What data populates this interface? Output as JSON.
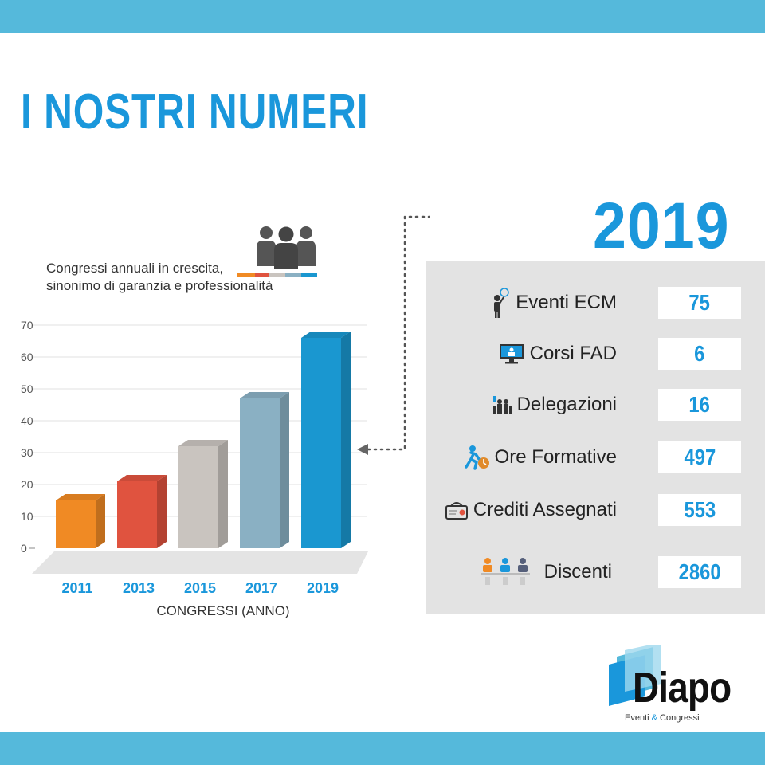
{
  "page": {
    "title": "I NOSTRI NUMERI",
    "colors": {
      "band": "#55b9db",
      "accent": "#1a97db",
      "panel": "#e3e3e3"
    }
  },
  "chart_caption": {
    "line1": "Congressi annuali in crescita,",
    "line2": "sinonimo di garanzia e professionalità",
    "icon": "people-group-icon"
  },
  "chart_data": {
    "type": "bar",
    "categories": [
      "2011",
      "2013",
      "2015",
      "2017",
      "2019"
    ],
    "values": [
      15,
      21,
      32,
      47,
      66
    ],
    "colors": [
      "#f08a24",
      "#e0533f",
      "#c9c4bf",
      "#8ab0c3",
      "#1a97d0"
    ],
    "xlabel": "CONGRESSI (ANNO)",
    "ylabel": "",
    "ylim": [
      0,
      70
    ],
    "yticks": [
      "0",
      "10",
      "20",
      "30",
      "40",
      "50",
      "60",
      "70"
    ],
    "grid": true
  },
  "stats": {
    "year": "2019",
    "items": [
      {
        "label": "Eventi ECM",
        "value": "75",
        "icon": "speaker-icon"
      },
      {
        "label": "Corsi FAD",
        "value": "6",
        "icon": "monitor-icon"
      },
      {
        "label": "Delegazioni",
        "value": "16",
        "icon": "delegation-icon"
      },
      {
        "label": "Ore Formative",
        "value": "497",
        "icon": "running-clock-icon"
      },
      {
        "label": "Crediti Assegnati",
        "value": "553",
        "icon": "certificate-icon"
      },
      {
        "label": "Discenti",
        "value": "2860",
        "icon": "learners-icon"
      }
    ]
  },
  "logo": {
    "word": "Diapo",
    "sub_before": "Eventi ",
    "sub_amp": "&",
    "sub_after": " Congressi"
  }
}
